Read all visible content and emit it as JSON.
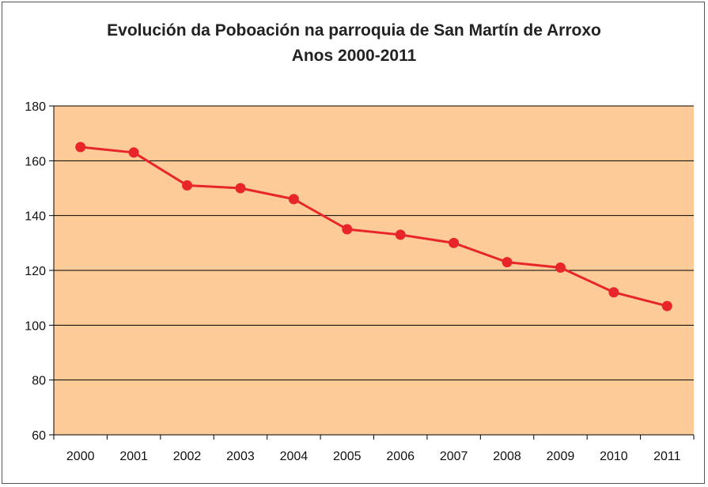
{
  "chart_data": {
    "type": "line",
    "title": "Evolución da Poboación na parroquia de San Martín de Arroxo",
    "subtitle": "Anos 2000-2011",
    "xlabel": "",
    "ylabel": "",
    "ylim": [
      60,
      180
    ],
    "yticks": [
      "60",
      "80",
      "100",
      "120",
      "140",
      "160",
      "180"
    ],
    "categories": [
      "2000",
      "2001",
      "2002",
      "2003",
      "2004",
      "2005",
      "2006",
      "2007",
      "2008",
      "2009",
      "2010",
      "2011"
    ],
    "series": [
      {
        "values": [
          165,
          163,
          151,
          150,
          146,
          135,
          133,
          130,
          123,
          121,
          112,
          107
        ]
      }
    ],
    "grid": true,
    "legend": "none",
    "colors": {
      "plot_bg": "#FCCB98",
      "line": "#E8262A",
      "grid": "#000000"
    }
  }
}
